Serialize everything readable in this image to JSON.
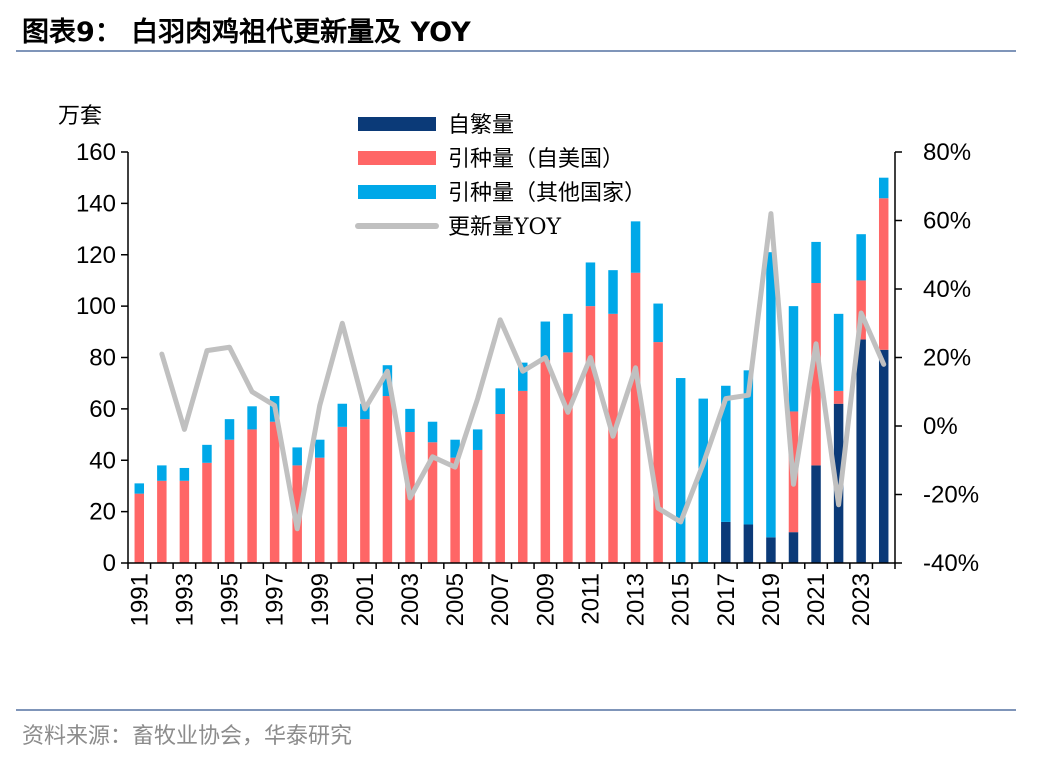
{
  "header": {
    "title": "图表9：  白羽肉鸡祖代更新量及 YOY"
  },
  "footer": {
    "source": "资料来源：畜牧业协会，华泰研究"
  },
  "colors": {
    "self": "#0b3a78",
    "import_us": "#ff6666",
    "import_other": "#00a8e8",
    "yoy": "#c0c0c0",
    "axis": "#000000"
  },
  "chart_data": {
    "type": "bar",
    "stacked": true,
    "title": "",
    "ylabel": "万套",
    "y2label": "",
    "ylim": [
      0,
      160
    ],
    "y2lim": [
      -40,
      80
    ],
    "yticks": [
      0,
      20,
      40,
      60,
      80,
      100,
      120,
      140,
      160
    ],
    "y2ticks": [
      "-40%",
      "-20%",
      "0%",
      "20%",
      "40%",
      "60%",
      "80%"
    ],
    "y2tick_values": [
      -40,
      -20,
      0,
      20,
      40,
      60,
      80
    ],
    "legend_position": "top-center",
    "categories": [
      "1991",
      "1992",
      "1993",
      "1994",
      "1995",
      "1996",
      "1997",
      "1998",
      "1999",
      "2000",
      "2001",
      "2002",
      "2003",
      "2004",
      "2005",
      "2006",
      "2007",
      "2008",
      "2009",
      "2010",
      "2011",
      "2012",
      "2013",
      "2014",
      "2015",
      "2016",
      "2017",
      "2018",
      "2019",
      "2020",
      "2021",
      "2022",
      "2023",
      "2024"
    ],
    "xtick_labels": [
      "1991",
      "1993",
      "1995",
      "1997",
      "1999",
      "2001",
      "2003",
      "2005",
      "2007",
      "2009",
      "2011",
      "2013",
      "2015",
      "2017",
      "2019",
      "2021",
      "2023"
    ],
    "series": [
      {
        "name": "自繁量",
        "kind": "bar",
        "values": [
          0,
          0,
          0,
          0,
          0,
          0,
          0,
          0,
          0,
          0,
          0,
          0,
          0,
          0,
          0,
          0,
          0,
          0,
          0,
          0,
          0,
          0,
          0,
          0,
          0,
          0,
          16,
          15,
          10,
          12,
          38,
          62,
          87,
          83
        ]
      },
      {
        "name": "引种量（自美国）",
        "kind": "bar",
        "values": [
          27,
          32,
          32,
          39,
          48,
          52,
          55,
          38,
          41,
          53,
          56,
          65,
          51,
          47,
          41,
          44,
          58,
          67,
          79,
          82,
          100,
          97,
          113,
          86,
          0,
          0,
          0,
          0,
          0,
          47,
          71,
          5,
          23,
          59
        ]
      },
      {
        "name": "引种量（其他国家）",
        "kind": "bar",
        "values": [
          4,
          6,
          5,
          7,
          8,
          9,
          10,
          7,
          7,
          9,
          6,
          12,
          9,
          8,
          7,
          8,
          10,
          11,
          15,
          15,
          17,
          17,
          20,
          15,
          72,
          64,
          53,
          60,
          111,
          41,
          16,
          30,
          18,
          8
        ]
      },
      {
        "name": "更新量YOY",
        "kind": "line",
        "axis": "right",
        "values": [
          null,
          21,
          -1,
          22,
          23,
          10,
          6,
          -30,
          6,
          30,
          5,
          16,
          -21,
          -9,
          -12,
          8,
          31,
          16,
          20,
          4,
          20,
          -3,
          17,
          -24,
          -28,
          -11,
          8,
          9,
          62,
          -17,
          24,
          -23,
          33,
          18
        ]
      }
    ]
  }
}
